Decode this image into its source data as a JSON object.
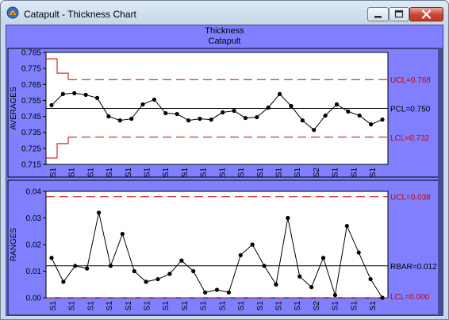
{
  "window": {
    "title": "Catapult - Thickness Chart",
    "app_icon": "catapult-app-icon",
    "minimize_icon": "minimize-icon",
    "maximize_icon": "maximize-icon",
    "close_icon": "close-icon"
  },
  "chart_header": {
    "title": "Thickness",
    "subtitle": "Catapult"
  },
  "colors": {
    "client_bg": "#8080ff",
    "plot_bg": "#ffffff",
    "limit_line": "#cc0000",
    "center_line": "#000000",
    "data_line": "#000000",
    "limit_label": "#cc0000",
    "center_label": "#000000"
  },
  "chart_data": [
    {
      "type": "line",
      "name": "averages",
      "ylabel": "AVERAGES",
      "ylim": [
        0.715,
        0.785
      ],
      "yticks": [
        "0.785",
        "0.775",
        "0.765",
        "0.755",
        "0.745",
        "0.735",
        "0.725",
        "0.715"
      ],
      "ytick_values": [
        0.785,
        0.775,
        0.765,
        0.755,
        0.745,
        0.735,
        0.725,
        0.715
      ],
      "x_labels": [
        "S1",
        "S1",
        "S1",
        "S1",
        "S1",
        "S1",
        "S1",
        "S1",
        "S1",
        "S1",
        "S1",
        "S1",
        "S1",
        "S1",
        "S2",
        "S1",
        "S1",
        "S1"
      ],
      "values": [
        0.752,
        0.759,
        0.7595,
        0.7585,
        0.7565,
        0.745,
        0.7425,
        0.7435,
        0.7525,
        0.7555,
        0.747,
        0.7465,
        0.7425,
        0.7435,
        0.743,
        0.7475,
        0.7485,
        0.744,
        0.7445,
        0.7505,
        0.759,
        0.7515,
        0.7425,
        0.7365,
        0.7455,
        0.7525,
        0.748,
        0.7455,
        0.74,
        0.743
      ],
      "ucl": 0.768,
      "lcl": 0.732,
      "center": 0.75,
      "ucl_label": "UCL=0.768",
      "lcl_label": "LCL=0.732",
      "center_label": "PCL=0.750",
      "ucl_step": [
        0.781,
        0.772,
        0.768
      ],
      "lcl_step": [
        0.719,
        0.728,
        0.732
      ],
      "grid": false
    },
    {
      "type": "line",
      "name": "ranges",
      "ylabel": "RANGES",
      "ylim": [
        0.0,
        0.04
      ],
      "yticks": [
        "0.04",
        "0.03",
        "0.02",
        "0.01",
        "0.00"
      ],
      "ytick_values": [
        0.04,
        0.03,
        0.02,
        0.01,
        0.0
      ],
      "x_labels": [
        "S1",
        "S1",
        "S1",
        "S1",
        "S1",
        "S1",
        "S1",
        "S1",
        "S1",
        "S1",
        "S1",
        "S1",
        "S1",
        "S1",
        "S2",
        "S1",
        "S1",
        "S1"
      ],
      "values": [
        0.015,
        0.006,
        0.012,
        0.011,
        0.032,
        0.012,
        0.024,
        0.01,
        0.006,
        0.007,
        0.009,
        0.014,
        0.01,
        0.002,
        0.003,
        0.002,
        0.016,
        0.02,
        0.012,
        0.005,
        0.03,
        0.008,
        0.004,
        0.015,
        0.001,
        0.027,
        0.017,
        0.007,
        0.0
      ],
      "ucl": 0.038,
      "lcl": 0.0,
      "center": 0.012,
      "ucl_label": "UCL=0.038",
      "lcl_label": "LCL=0.000",
      "center_label": "RBAR=0.012",
      "grid": false
    }
  ]
}
